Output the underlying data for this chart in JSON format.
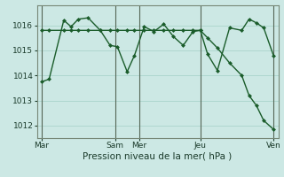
{
  "background_color": "#cce8e4",
  "grid_color": "#aad4cc",
  "line_color": "#1a5c2a",
  "xlabel": "Pression niveau de la mer( hPa )",
  "ylim": [
    1011.5,
    1016.8
  ],
  "yticks": [
    1012,
    1013,
    1014,
    1015,
    1016
  ],
  "xtick_labels": [
    "Mar",
    "Sam",
    "Mer",
    "Jeu",
    "Ven"
  ],
  "xtick_positions": [
    0,
    30,
    40,
    65,
    95
  ],
  "vline_positions": [
    0,
    30,
    40,
    65,
    95
  ],
  "series1_x": [
    0,
    3,
    9,
    12,
    15,
    19,
    24,
    28,
    31,
    35,
    38,
    42,
    46,
    50,
    54,
    58,
    62,
    65,
    68,
    72,
    77,
    82,
    85,
    88,
    91,
    95
  ],
  "series1_y": [
    1013.75,
    1013.85,
    1016.2,
    1015.95,
    1016.25,
    1016.3,
    1015.8,
    1015.2,
    1015.15,
    1014.15,
    1014.8,
    1015.95,
    1015.75,
    1016.05,
    1015.55,
    1015.2,
    1015.75,
    1015.8,
    1014.85,
    1014.2,
    1015.9,
    1015.8,
    1016.25,
    1016.1,
    1015.9,
    1014.8
  ],
  "series2_x": [
    0,
    3,
    9,
    12,
    15,
    19,
    24,
    28,
    31,
    35,
    38,
    42,
    46,
    50,
    54,
    58,
    62,
    65,
    68,
    72,
    77,
    82,
    85,
    88,
    91,
    95
  ],
  "series2_y": [
    1015.8,
    1015.8,
    1015.8,
    1015.8,
    1015.8,
    1015.8,
    1015.8,
    1015.8,
    1015.8,
    1015.8,
    1015.8,
    1015.8,
    1015.8,
    1015.8,
    1015.8,
    1015.8,
    1015.8,
    1015.8,
    1015.5,
    1015.1,
    1014.5,
    1014.0,
    1013.2,
    1012.8,
    1012.2,
    1011.85
  ],
  "marker_size": 2.5,
  "line_width": 1.0,
  "tick_fontsize": 6.5,
  "xlabel_fontsize": 7.5
}
